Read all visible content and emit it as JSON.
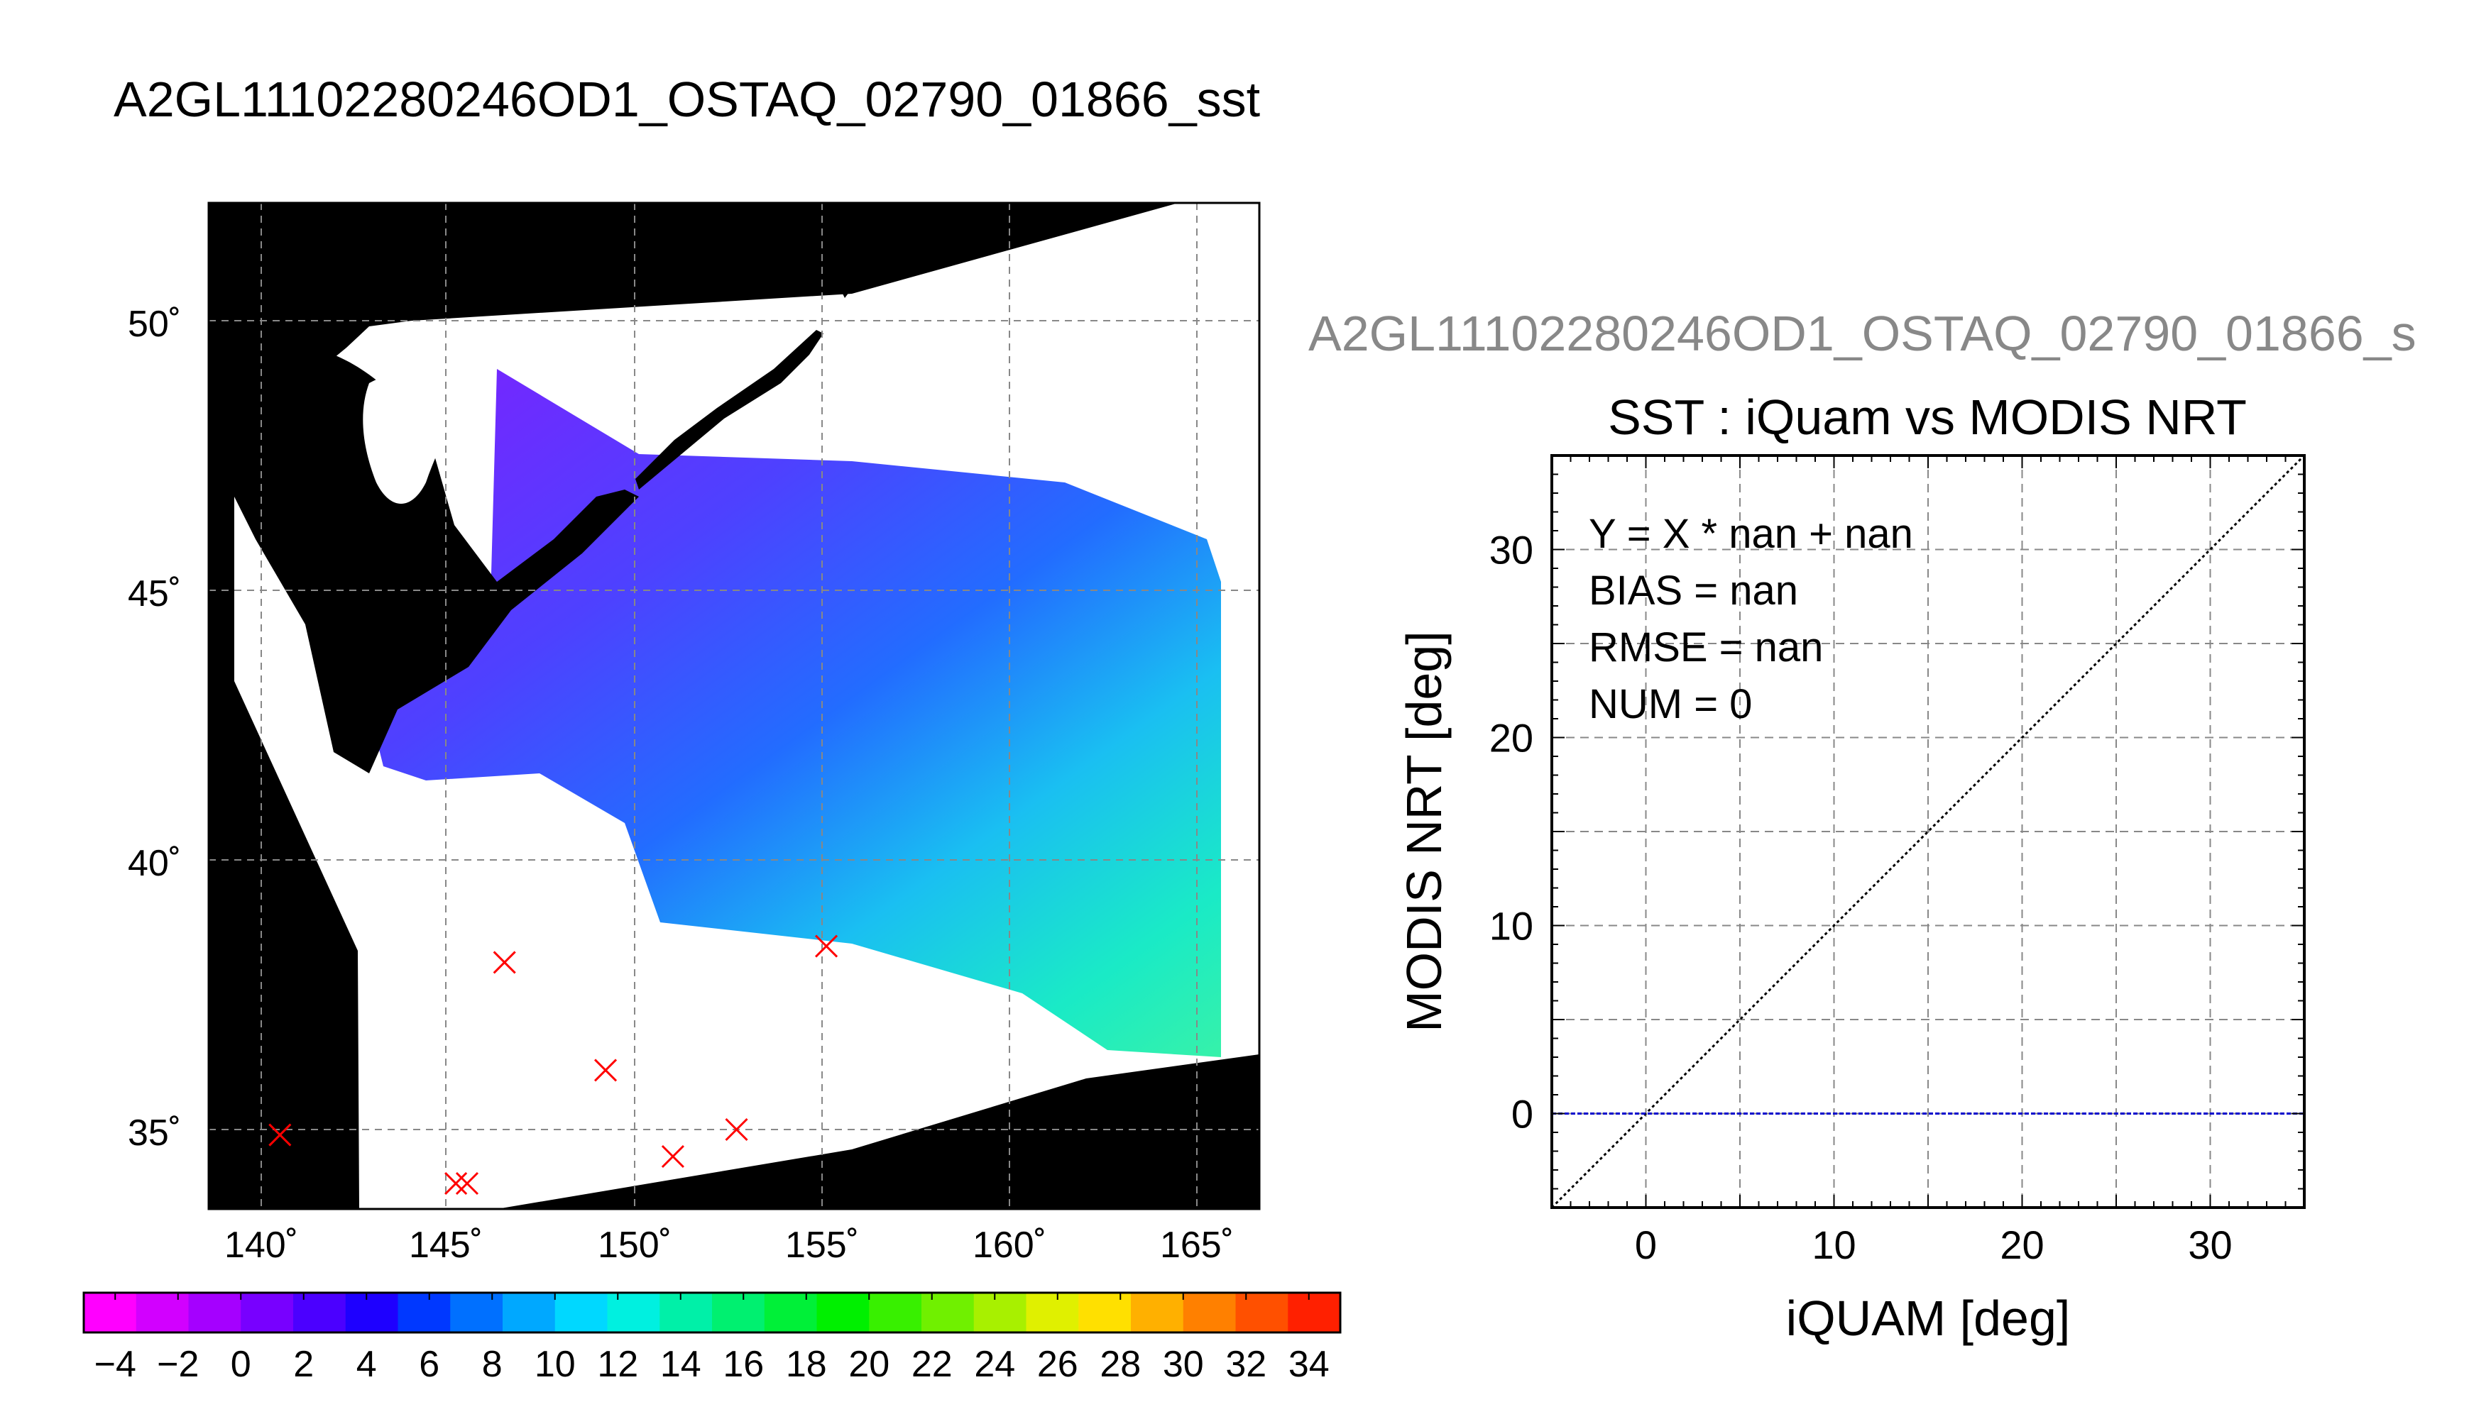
{
  "title": "A2GL11102280246OD1_OSTAQ_02790_01866_sst",
  "subtitle": "A2GL11102280246OD1_OSTAQ_02790_01866_s",
  "chart_data": [
    {
      "type": "map",
      "x_ticks": [
        "140˚",
        "145˚",
        "150˚",
        "155˚",
        "160˚",
        "165˚"
      ],
      "x_tick_values": [
        140,
        145,
        150,
        155,
        160,
        165
      ],
      "y_ticks": [
        "35˚",
        "40˚",
        "45˚",
        "50˚"
      ],
      "y_tick_values": [
        35,
        40,
        45,
        50
      ],
      "xlim": [
        138.7,
        166.6
      ],
      "ylim": [
        33.4,
        52.3
      ],
      "grid": true,
      "iquam_points": [
        {
          "lon": 140.5,
          "lat": 34.9
        },
        {
          "lon": 145.2,
          "lat": 34.0
        },
        {
          "lon": 145.5,
          "lat": 34.0
        },
        {
          "lon": 146.5,
          "lat": 38.1
        },
        {
          "lon": 149.2,
          "lat": 36.1
        },
        {
          "lon": 151.0,
          "lat": 34.5
        },
        {
          "lon": 152.7,
          "lat": 35.0
        },
        {
          "lon": 155.1,
          "lat": 38.4
        }
      ],
      "marker_color": "#ff0000"
    },
    {
      "type": "scatter",
      "title": "SST : iQuam vs MODIS NRT",
      "xlabel": "iQUAM [deg]",
      "ylabel": "MODIS NRT [deg]",
      "xlim": [
        -5,
        35
      ],
      "ylim": [
        -5,
        35
      ],
      "x_ticks": [
        0,
        10,
        20,
        30
      ],
      "y_ticks": [
        0,
        10,
        20,
        30
      ],
      "grid_step": 5,
      "grid": true,
      "annotations": [
        "Y = X * nan + nan",
        "BIAS = nan",
        "RMSE = nan",
        "NUM = 0"
      ],
      "reference_lines": [
        {
          "kind": "identity",
          "color": "#000000"
        },
        {
          "kind": "horizontal",
          "y": 0,
          "color": "#0000cc"
        }
      ],
      "points": []
    },
    {
      "type": "colorbar",
      "range": [
        -5,
        35
      ],
      "step": 2,
      "tick_labels": [
        "−4",
        "−2",
        "0",
        "2",
        "4",
        "6",
        "8",
        "10",
        "12",
        "14",
        "16",
        "18",
        "20",
        "22",
        "24",
        "26",
        "28",
        "30",
        "32",
        "34"
      ],
      "colors": [
        "#ff00ff",
        "#d200ff",
        "#a500ff",
        "#7800ff",
        "#4b00ff",
        "#1e00ff",
        "#0038ff",
        "#0070ff",
        "#00a8ff",
        "#00d8ff",
        "#00f0e0",
        "#00f0a8",
        "#00f070",
        "#00f038",
        "#00f000",
        "#38f000",
        "#70f000",
        "#a8f000",
        "#e0f000",
        "#ffe000",
        "#ffb000",
        "#ff8000",
        "#ff5000",
        "#ff2000"
      ]
    }
  ]
}
